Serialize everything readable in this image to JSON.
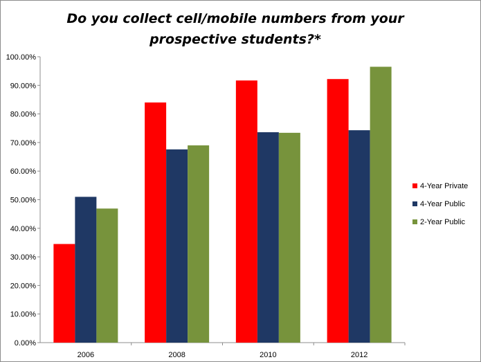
{
  "chart_data": {
    "type": "bar",
    "title_lines": [
      "Do you collect cell/mobile numbers from your",
      "prospective students?*"
    ],
    "categories": [
      "2006",
      "2008",
      "2010",
      "2012"
    ],
    "series": [
      {
        "name": "4-Year Private",
        "color": "#ff0000",
        "values": [
          34.5,
          84.0,
          91.7,
          92.2
        ]
      },
      {
        "name": "4-Year Public",
        "color": "#1f3864",
        "values": [
          51.0,
          67.6,
          73.6,
          74.3
        ]
      },
      {
        "name": "2-Year Public",
        "color": "#77933c",
        "values": [
          46.9,
          69.0,
          73.4,
          96.5
        ]
      }
    ],
    "ylim": [
      0,
      100
    ],
    "ytick_step": 10,
    "ytick_labels": [
      "0.00%",
      "10.00%",
      "20.00%",
      "30.00%",
      "40.00%",
      "50.00%",
      "60.00%",
      "70.00%",
      "80.00%",
      "90.00%",
      "100.00%"
    ],
    "grid": false,
    "legend_position": "right"
  }
}
